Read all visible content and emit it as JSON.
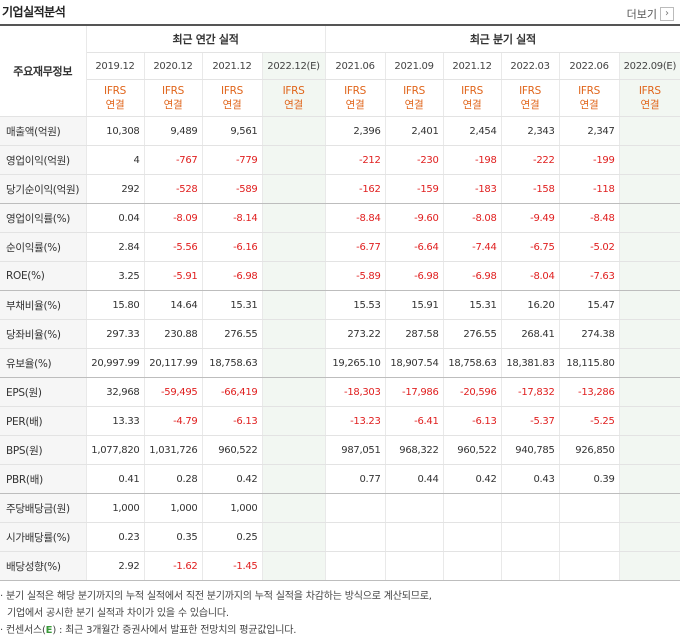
{
  "section_title": "기업실적분석",
  "more_label": "더보기",
  "more_icon": "chevron-right-icon",
  "corner_label": "주요재무정보",
  "annual_header": "최근 연간 실적",
  "quarter_header": "최근 분기 실적",
  "periods": [
    "2019.12",
    "2020.12",
    "2021.12",
    "2022.12(E)",
    "2021.06",
    "2021.09",
    "2021.12",
    "2022.03",
    "2022.06",
    "2022.09(E)"
  ],
  "estimate_flags": [
    false,
    false,
    false,
    true,
    false,
    false,
    false,
    false,
    false,
    true
  ],
  "basis_line1": "IFRS",
  "basis_line2": "연결",
  "colors": {
    "accent_orange": "#e0651b",
    "negative_red": "#e02020",
    "estimate_bg": "#f2f7f2",
    "estimate_green": "#3a9a3a"
  },
  "rows": [
    {
      "label": "매출액(억원)",
      "group_end": false,
      "values": [
        "10,308",
        "9,489",
        "9,561",
        "",
        "2,396",
        "2,401",
        "2,454",
        "2,343",
        "2,347",
        ""
      ]
    },
    {
      "label": "영업이익(억원)",
      "group_end": false,
      "values": [
        "4",
        "-767",
        "-779",
        "",
        "-212",
        "-230",
        "-198",
        "-222",
        "-199",
        ""
      ]
    },
    {
      "label": "당기순이익(억원)",
      "group_end": true,
      "values": [
        "292",
        "-528",
        "-589",
        "",
        "-162",
        "-159",
        "-183",
        "-158",
        "-118",
        ""
      ]
    },
    {
      "label": "영업이익률(%)",
      "group_end": false,
      "values": [
        "0.04",
        "-8.09",
        "-8.14",
        "",
        "-8.84",
        "-9.60",
        "-8.08",
        "-9.49",
        "-8.48",
        ""
      ]
    },
    {
      "label": "순이익률(%)",
      "group_end": false,
      "values": [
        "2.84",
        "-5.56",
        "-6.16",
        "",
        "-6.77",
        "-6.64",
        "-7.44",
        "-6.75",
        "-5.02",
        ""
      ]
    },
    {
      "label": "ROE(%)",
      "group_end": true,
      "values": [
        "3.25",
        "-5.91",
        "-6.98",
        "",
        "-5.89",
        "-6.98",
        "-6.98",
        "-8.04",
        "-7.63",
        ""
      ]
    },
    {
      "label": "부채비율(%)",
      "group_end": false,
      "values": [
        "15.80",
        "14.64",
        "15.31",
        "",
        "15.53",
        "15.91",
        "15.31",
        "16.20",
        "15.47",
        ""
      ]
    },
    {
      "label": "당좌비율(%)",
      "group_end": false,
      "values": [
        "297.33",
        "230.88",
        "276.55",
        "",
        "273.22",
        "287.58",
        "276.55",
        "268.41",
        "274.38",
        ""
      ]
    },
    {
      "label": "유보율(%)",
      "group_end": true,
      "values": [
        "20,997.99",
        "20,117.99",
        "18,758.63",
        "",
        "19,265.10",
        "18,907.54",
        "18,758.63",
        "18,381.83",
        "18,115.80",
        ""
      ]
    },
    {
      "label": "EPS(원)",
      "group_end": false,
      "values": [
        "32,968",
        "-59,495",
        "-66,419",
        "",
        "-18,303",
        "-17,986",
        "-20,596",
        "-17,832",
        "-13,286",
        ""
      ]
    },
    {
      "label": "PER(배)",
      "group_end": false,
      "values": [
        "13.33",
        "-4.79",
        "-6.13",
        "",
        "-13.23",
        "-6.41",
        "-6.13",
        "-5.37",
        "-5.25",
        ""
      ]
    },
    {
      "label": "BPS(원)",
      "group_end": false,
      "values": [
        "1,077,820",
        "1,031,726",
        "960,522",
        "",
        "987,051",
        "968,322",
        "960,522",
        "940,785",
        "926,850",
        ""
      ]
    },
    {
      "label": "PBR(배)",
      "group_end": true,
      "values": [
        "0.41",
        "0.28",
        "0.42",
        "",
        "0.77",
        "0.44",
        "0.42",
        "0.43",
        "0.39",
        ""
      ]
    },
    {
      "label": "주당배당금(원)",
      "group_end": false,
      "values": [
        "1,000",
        "1,000",
        "1,000",
        "",
        "",
        "",
        "",
        "",
        "",
        ""
      ]
    },
    {
      "label": "시가배당률(%)",
      "group_end": false,
      "values": [
        "0.23",
        "0.35",
        "0.25",
        "",
        "",
        "",
        "",
        "",
        "",
        ""
      ]
    },
    {
      "label": "배당성향(%)",
      "group_end": true,
      "values": [
        "2.92",
        "-1.62",
        "-1.45",
        "",
        "",
        "",
        "",
        "",
        "",
        ""
      ]
    }
  ],
  "notes": {
    "line1": "· 분기 실적은 해당 분기까지의 누적 실적에서 직전 분기까지의 누적 실적을 차감하는 방식으로 계산되므로,",
    "line2": "기업에서 공시한 분기 실적과 차이가 있을 수 있습니다.",
    "line3_prefix": "· 컨센서스(",
    "line3_mark": "E",
    "line3_suffix": ") : 최근 3개월간 증권사에서 발표한 전망치의 평균값입니다."
  }
}
